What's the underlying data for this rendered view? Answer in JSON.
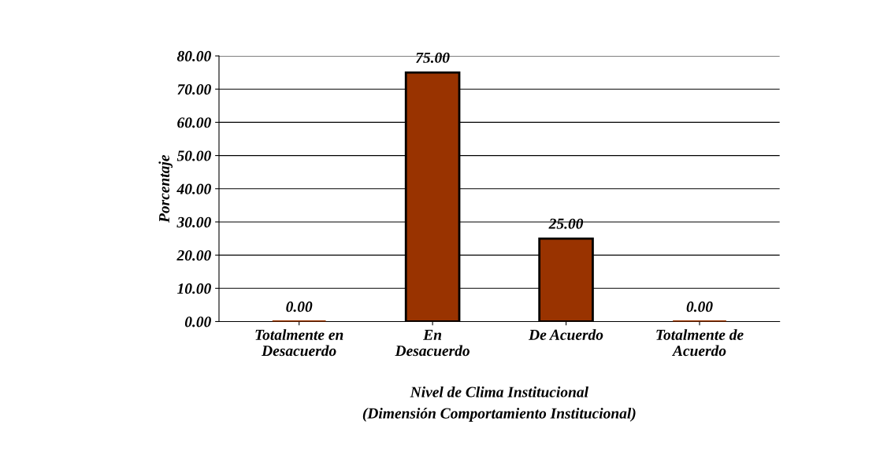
{
  "chart_data": {
    "type": "bar",
    "xlabel": "Nivel de Clima Institucional\n(Dimensión Comportamiento Institucional)",
    "ylabel": "Porcentaje",
    "categories": [
      "Totalmente en\nDesacuerdo",
      "En\nDesacuerdo",
      "De Acuerdo",
      "Totalmente de\nAcuerdo"
    ],
    "values": [
      0,
      75,
      25,
      0
    ],
    "color": "#993300",
    "value_labels": [
      "0.00",
      "75.00",
      "25.00",
      "0.00"
    ],
    "ylim": [
      0,
      80
    ],
    "yticks": [
      {
        "value": 0,
        "label": "0.00"
      },
      {
        "value": 10,
        "label": "10.00"
      },
      {
        "value": 20,
        "label": "20.00"
      },
      {
        "value": 30,
        "label": "30.00"
      },
      {
        "value": 40,
        "label": "40.00"
      },
      {
        "value": 50,
        "label": "50.00"
      },
      {
        "value": 60,
        "label": "60.00"
      },
      {
        "value": 70,
        "label": "70.00"
      },
      {
        "value": 80,
        "label": "80.00"
      }
    ],
    "grid": "y",
    "legend": false
  }
}
